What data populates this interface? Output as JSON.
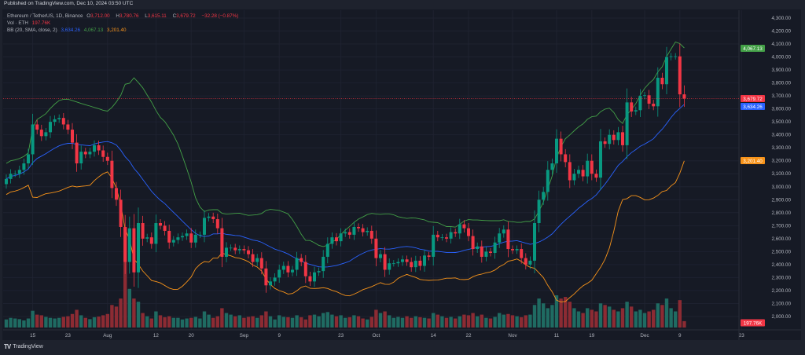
{
  "published": "Published on TradingView.com, Dec 10, 2024 03:50 UTC",
  "legend": {
    "symbol": "Ethereum / TetherUS, 1D, Binance",
    "o_label": "O",
    "o": "3,712.00",
    "h_label": "H",
    "h": "3,780.76",
    "l_label": "L",
    "l": "3,615.11",
    "c_label": "C",
    "c": "3,679.72",
    "change": "−32.28 (−0.87%)",
    "vol_label": "Vol · ETH",
    "vol": "197.76K",
    "bb_label": "BB (20, SMA, close, 2)",
    "bb_basis": "3,634.26",
    "bb_upper": "4,067.13",
    "bb_lower": "3,201.40"
  },
  "footer": {
    "logo": "TV",
    "brand": "TradingView"
  },
  "colors": {
    "bg": "#161a25",
    "grid": "#1e2230",
    "up": "#089981",
    "down": "#f23645",
    "vol_up": "#1f6b62",
    "vol_down": "#8c2b33",
    "bb_basis": "#2962ff",
    "bb_upper": "#43a047",
    "bb_lower": "#f7931a",
    "text": "#b2b5be"
  },
  "chart_data": {
    "type": "candlestick",
    "symbol": "ETHUSDT",
    "interval": "1D",
    "start_date": "2024-07-09",
    "close": [
      3060,
      3100,
      3100,
      3130,
      3180,
      3250,
      3480,
      3440,
      3390,
      3420,
      3500,
      3520,
      3530,
      3480,
      3440,
      3340,
      3180,
      3270,
      3250,
      3270,
      3320,
      3280,
      3230,
      3200,
      2990,
      2900,
      2690,
      2420,
      2680,
      2340,
      2720,
      2600,
      2610,
      2560,
      2720,
      2700,
      2660,
      2570,
      2590,
      2610,
      2620,
      2640,
      2570,
      2630,
      2630,
      2760,
      2770,
      2750,
      2680,
      2460,
      2530,
      2530,
      2510,
      2520,
      2510,
      2480,
      2420,
      2450,
      2370,
      2240,
      2270,
      2300,
      2360,
      2390,
      2340,
      2360,
      2450,
      2420,
      2310,
      2270,
      2340,
      2350,
      2460,
      2560,
      2610,
      2580,
      2640,
      2650,
      2630,
      2690,
      2680,
      2650,
      2660,
      2600,
      2450,
      2480,
      2360,
      2410,
      2410,
      2420,
      2440,
      2420,
      2380,
      2430,
      2390,
      2470,
      2460,
      2630,
      2610,
      2610,
      2600,
      2650,
      2640,
      2710,
      2680,
      2620,
      2520,
      2540,
      2460,
      2500,
      2490,
      2570,
      2640,
      2670,
      2520,
      2510,
      2520,
      2450,
      2400,
      2430,
      2720,
      2900,
      2960,
      3130,
      3180,
      3370,
      3250,
      3190,
      3050,
      3100,
      3130,
      3080,
      3200,
      3100,
      3070,
      3350,
      3330,
      3400,
      3360,
      3420,
      3320,
      3650,
      3580,
      3590,
      3700,
      3705,
      3640,
      3620,
      3840,
      3790,
      4000,
      4005,
      4005,
      3712,
      3679.72
    ],
    "volume_k": [
      250,
      300,
      280,
      260,
      220,
      280,
      520,
      400,
      380,
      330,
      300,
      280,
      300,
      330,
      350,
      420,
      550,
      380,
      300,
      260,
      320,
      340,
      380,
      420,
      700,
      650,
      900,
      3100,
      1200,
      900,
      800,
      450,
      350,
      280,
      500,
      380,
      320,
      350,
      300,
      300,
      250,
      280,
      300,
      330,
      280,
      500,
      400,
      300,
      350,
      600,
      450,
      400,
      350,
      380,
      300,
      330,
      350,
      300,
      380,
      500,
      350,
      250,
      380,
      330,
      320,
      300,
      380,
      320,
      250,
      380,
      400,
      350,
      450,
      480,
      400,
      350,
      380,
      300,
      320,
      380,
      350,
      280,
      250,
      330,
      550,
      450,
      500,
      380,
      300,
      330,
      300,
      350,
      300,
      350,
      320,
      300,
      280,
      450,
      400,
      350,
      300,
      330,
      280,
      350,
      400,
      380,
      450,
      350,
      400,
      300,
      280,
      330,
      450,
      400,
      420,
      380,
      350,
      320,
      380,
      400,
      700,
      900,
      750,
      600,
      700,
      1000,
      900,
      950,
      800,
      600,
      500,
      450,
      600,
      550,
      500,
      750,
      700,
      650,
      550,
      500,
      600,
      800,
      650,
      500,
      550,
      450,
      500,
      550,
      750,
      700,
      900,
      600,
      500,
      850,
      197.76
    ],
    "last_ohlc": {
      "open": 3712.0,
      "high": 3780.76,
      "low": 3615.11,
      "close": 3679.72
    },
    "bollinger": {
      "length": 20,
      "source": "close",
      "mult": 2,
      "basis": 3634.26,
      "upper": 4067.13,
      "lower": 3201.4
    },
    "ylim": [
      1950,
      4350
    ],
    "y_ticks": [
      "4,300.00",
      "4,200.00",
      "4,100.00",
      "4,000.00",
      "3,900.00",
      "3,800.00",
      "3,700.00",
      "3,600.00",
      "3,500.00",
      "3,400.00",
      "3,300.00",
      "3,200.00",
      "3,100.00",
      "3,000.00",
      "2,900.00",
      "2,800.00",
      "2,700.00",
      "2,600.00",
      "2,500.00",
      "2,400.00",
      "2,300.00",
      "2,200.00",
      "2,100.00",
      "2,000.00"
    ],
    "x_ticks": [
      {
        "label": "15",
        "date": "2024-07-15"
      },
      {
        "label": "23",
        "date": "2024-07-23"
      },
      {
        "label": "Aug",
        "date": "2024-08-01"
      },
      {
        "label": "12",
        "date": "2024-08-12"
      },
      {
        "label": "20",
        "date": "2024-08-20"
      },
      {
        "label": "Sep",
        "date": "2024-09-01"
      },
      {
        "label": "9",
        "date": "2024-09-09"
      },
      {
        "label": "23",
        "date": "2024-09-23"
      },
      {
        "label": "Oct",
        "date": "2024-10-01"
      },
      {
        "label": "14",
        "date": "2024-10-14"
      },
      {
        "label": "22",
        "date": "2024-10-22"
      },
      {
        "label": "Nov",
        "date": "2024-11-01"
      },
      {
        "label": "11",
        "date": "2024-11-11"
      },
      {
        "label": "19",
        "date": "2024-11-19"
      },
      {
        "label": "Dec",
        "date": "2024-12-01"
      },
      {
        "label": "9",
        "date": "2024-12-09"
      },
      {
        "label": "23",
        "date": "2024-12-23"
      }
    ],
    "price_labels": {
      "upper": "4,067.13",
      "close": "3,679.72",
      "basis": "3,634.26",
      "lower": "3,201.40",
      "volume": "197.76K"
    },
    "grid": true
  }
}
